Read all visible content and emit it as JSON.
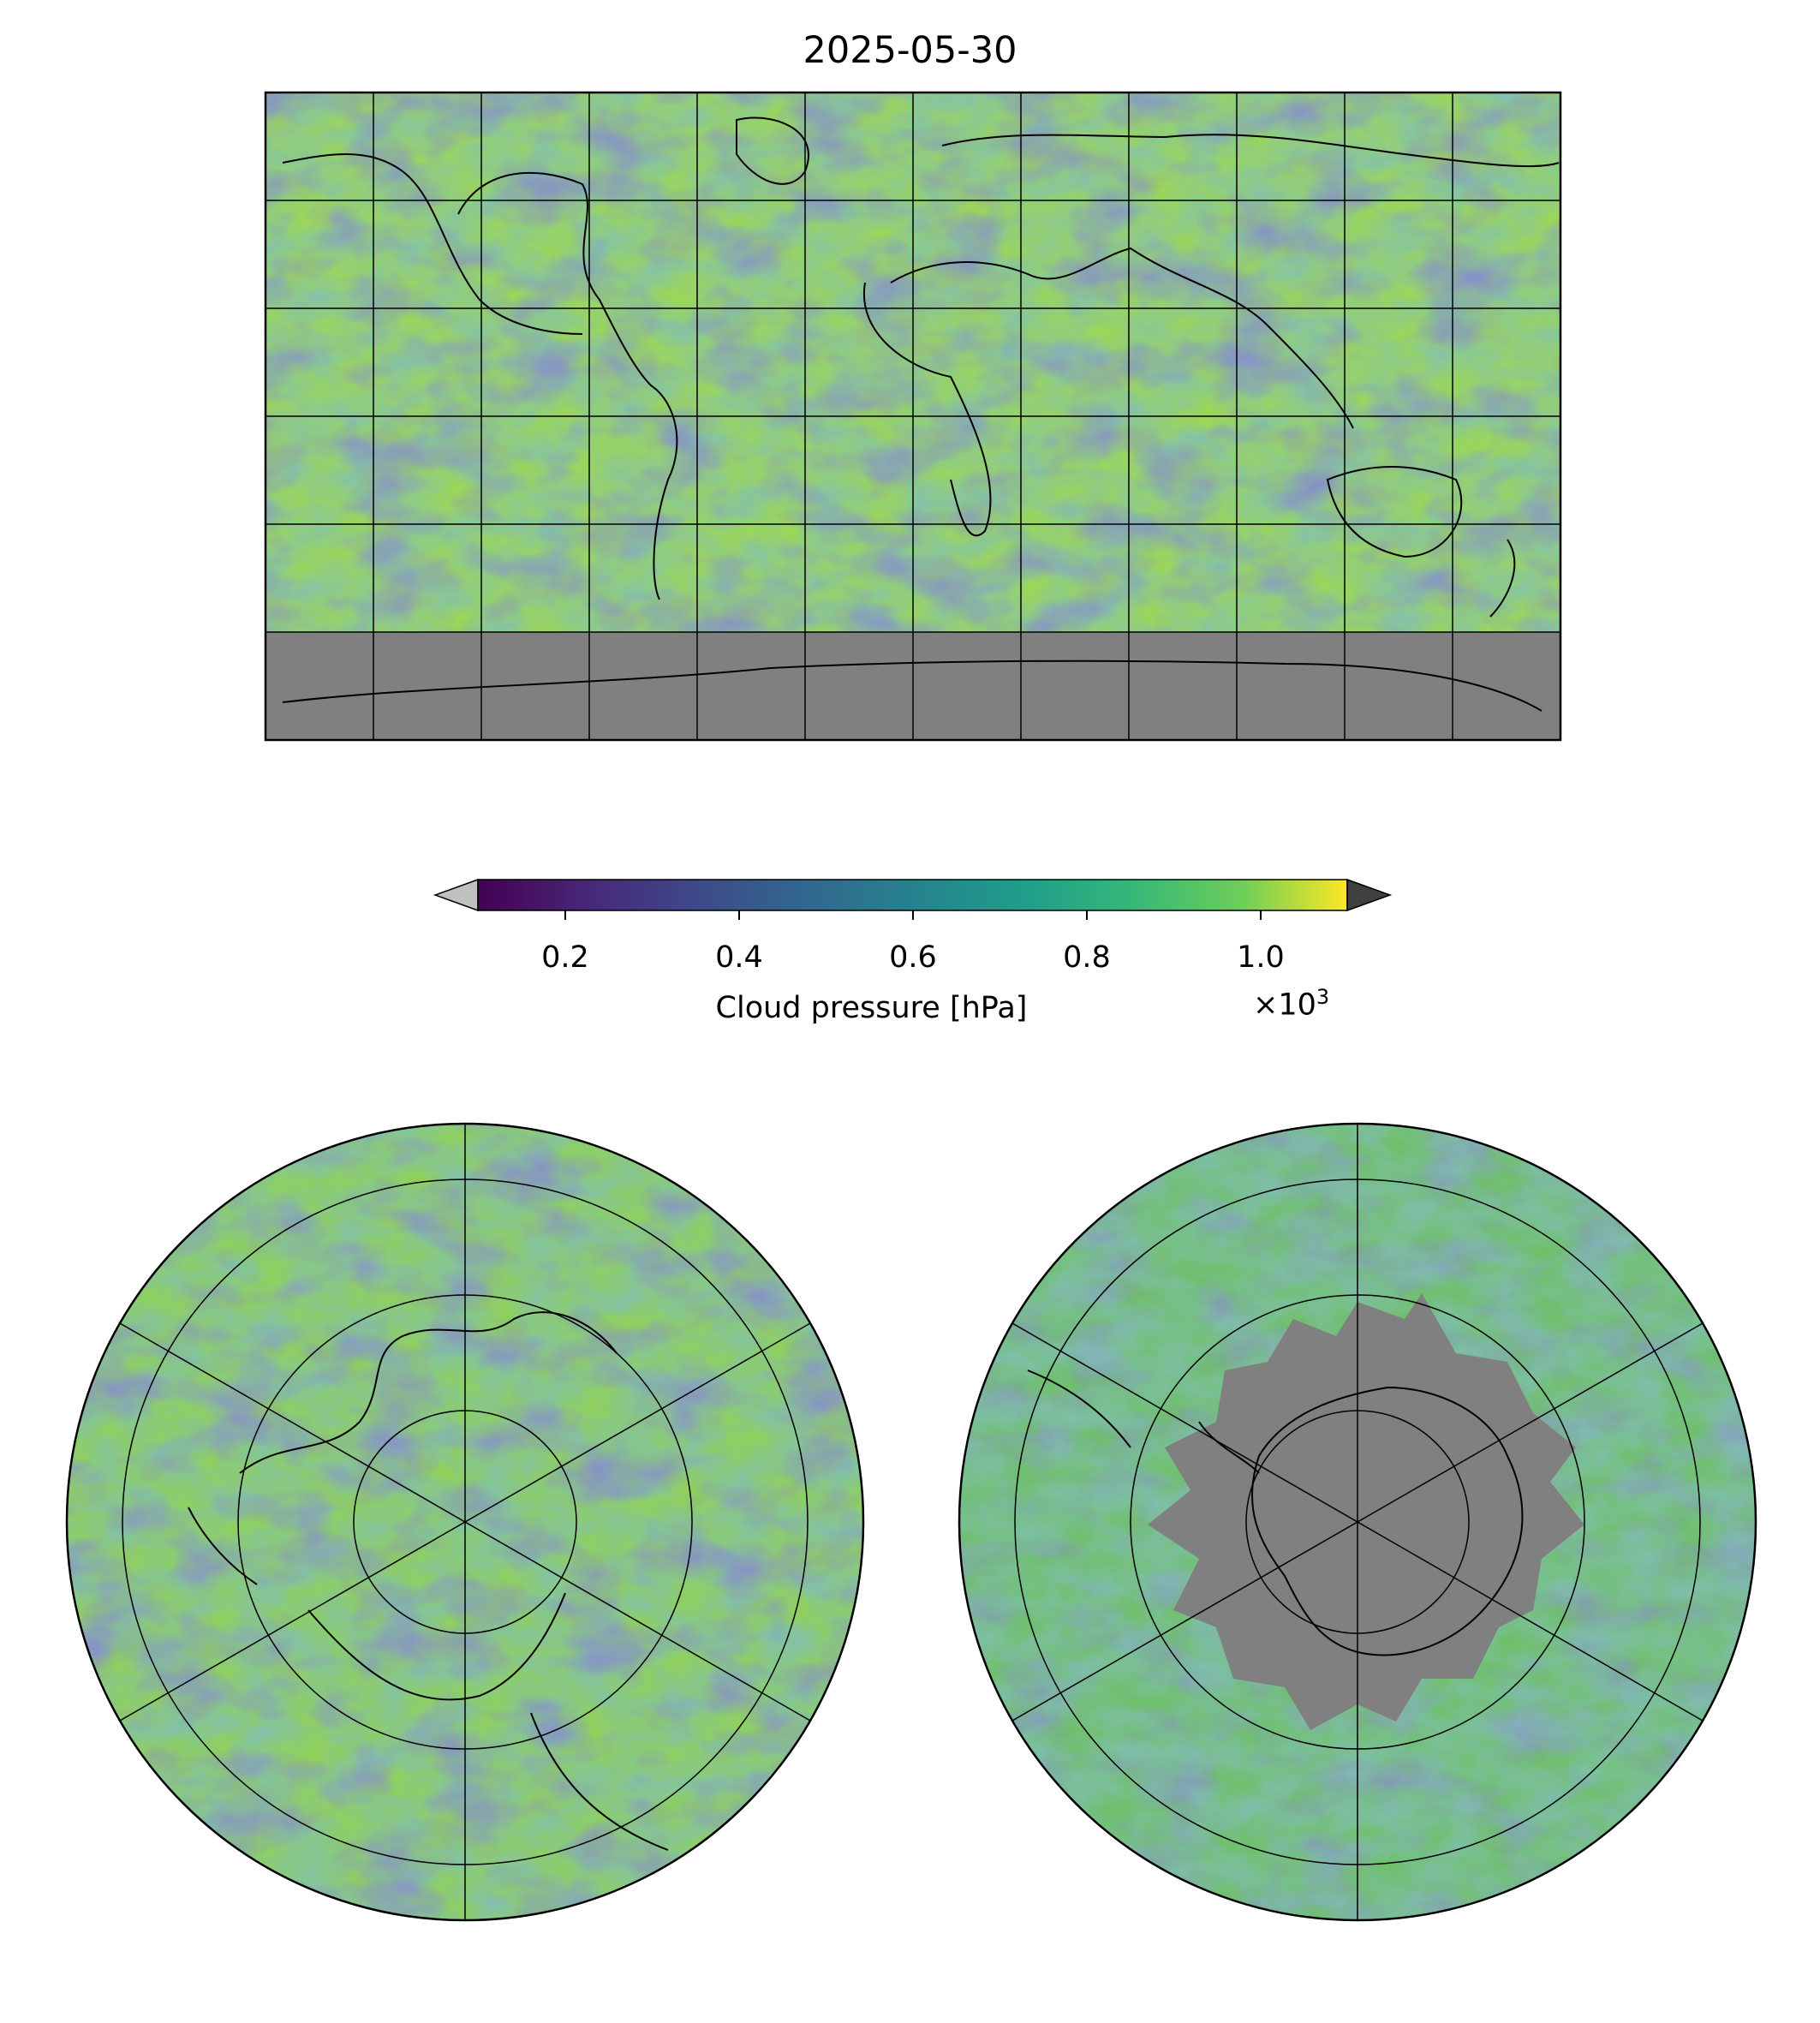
{
  "title": "2025-05-30",
  "colorbar": {
    "label": "Cloud pressure [hPa]",
    "multiplier": "×10",
    "multiplier_exp": "3",
    "ticks": [
      "0.2",
      "0.4",
      "0.6",
      "0.8",
      "1.0"
    ],
    "tick_values": [
      0.2,
      0.4,
      0.6,
      0.8,
      1.0
    ],
    "range": [
      0.1,
      1.1
    ],
    "colormap": "viridis",
    "under_color": "#c0c0c0",
    "over_color": "#404040",
    "extend": "both"
  },
  "maps": [
    {
      "name": "global",
      "projection": "plate-carree",
      "gridlines": true,
      "coastlines": true,
      "no_data_color": "#808080"
    },
    {
      "name": "north-polar",
      "projection": "north-polar-stereographic",
      "gridlines": true,
      "coastlines": true
    },
    {
      "name": "south-polar",
      "projection": "south-polar-stereographic",
      "gridlines": true,
      "coastlines": true,
      "no_data_color": "#808080"
    }
  ]
}
